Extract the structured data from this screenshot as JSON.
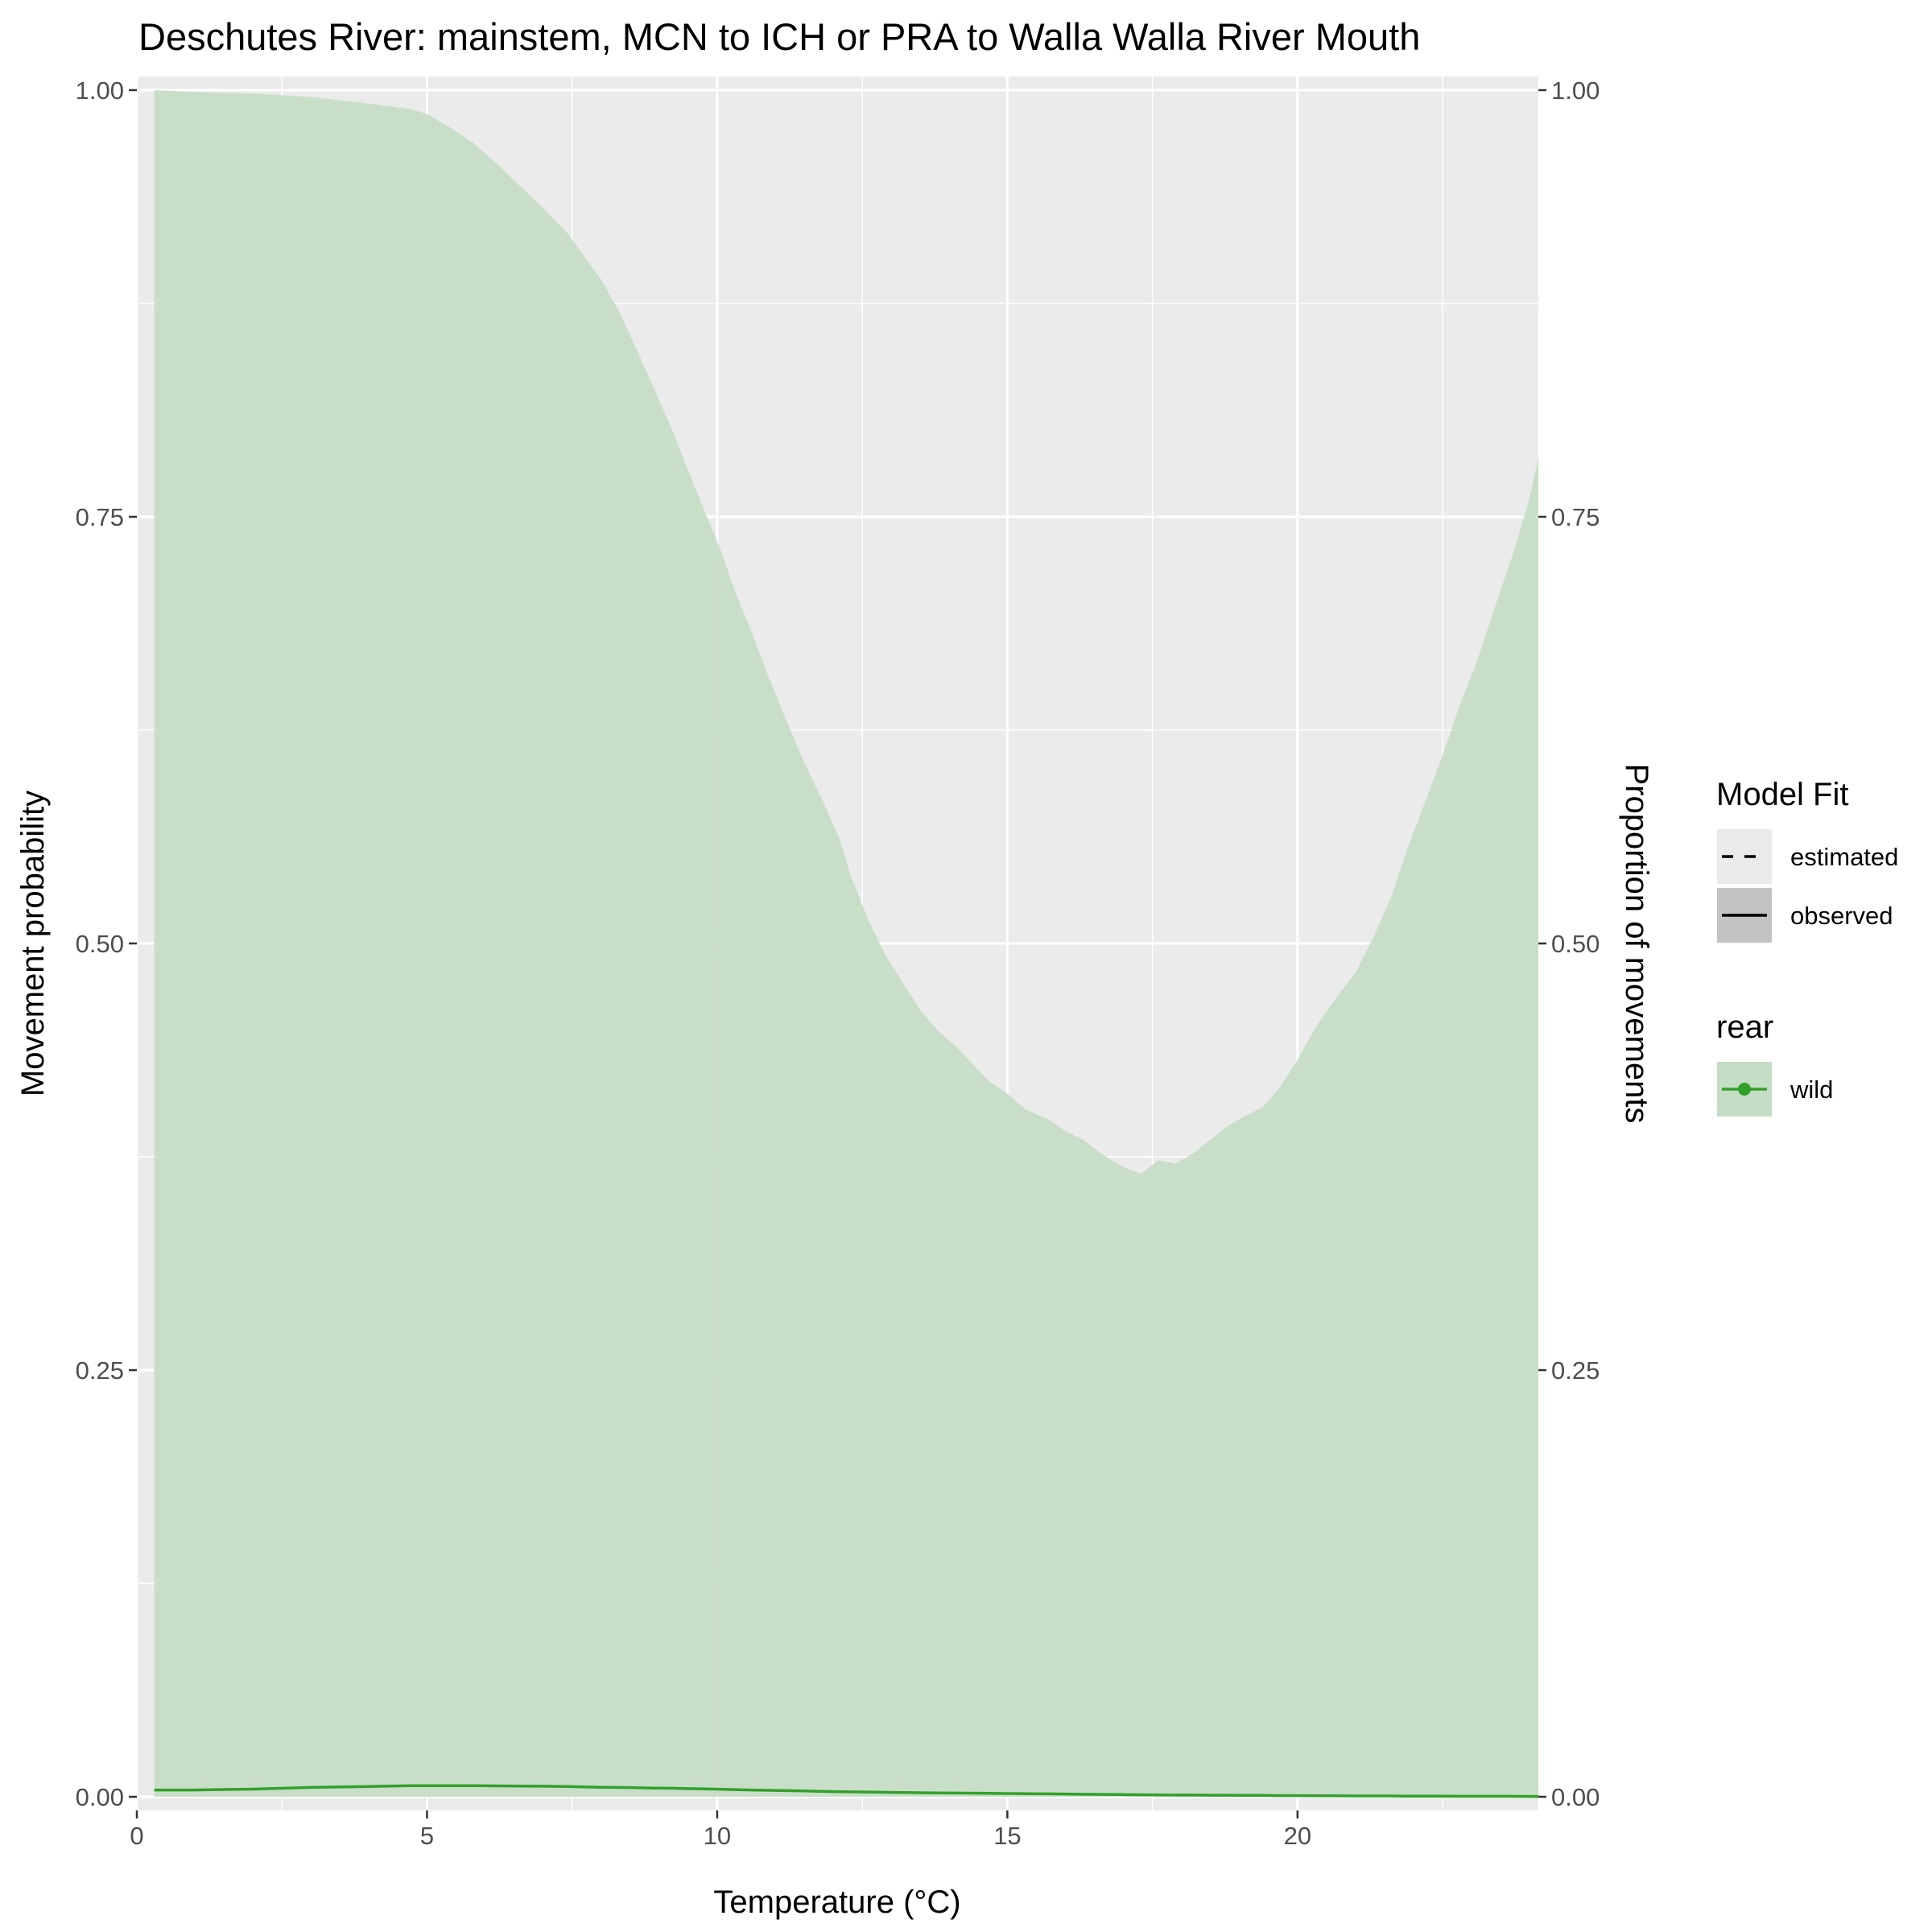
{
  "chart_data": {
    "type": "area",
    "title": "Deschutes River: mainstem, MCN to ICH or PRA to Walla Walla River Mouth",
    "xlabel": "Temperature (°C)",
    "ylabel": "Movement probability",
    "ylabel_right": "Proportion of movements",
    "xlim": [
      0,
      24.15
    ],
    "ylim": [
      -0.008,
      1.008
    ],
    "x_ticks": [
      0,
      5,
      10,
      15,
      20
    ],
    "x_tick_labels": [
      "0",
      "5",
      "10",
      "15",
      "20"
    ],
    "y_ticks": [
      0,
      0.25,
      0.5,
      0.75,
      1
    ],
    "y_tick_labels": [
      "0.00",
      "0.25",
      "0.50",
      "0.75",
      "1.00"
    ],
    "y_minor_ticks": [
      0.125,
      0.375,
      0.625,
      0.875
    ],
    "x_minor_ticks": [
      2.5,
      7.5,
      12.5,
      17.5,
      22.5
    ],
    "grid": true,
    "legend_position": "right",
    "colors": {
      "ribbon": "#c5dcc5",
      "line": "#33a02c",
      "panel": "#ebebeb",
      "grid": "#ffffff"
    },
    "legends": [
      {
        "title": "Model Fit",
        "entries": [
          {
            "label": "estimated",
            "style": "dashed",
            "key_fill": "#ebebeb"
          },
          {
            "label": "observed",
            "style": "solid",
            "key_fill": "#c3c3c3"
          }
        ]
      },
      {
        "title": "rear",
        "entries": [
          {
            "label": "wild",
            "style": "point-line",
            "key_fill": "#c5dcc5",
            "color": "#33a02c"
          }
        ]
      }
    ],
    "series": [
      {
        "name": "wild",
        "x": [
          0.3,
          1.0,
          2.0,
          3.0,
          4.0,
          4.7,
          5.0,
          5.4,
          5.8,
          6.2,
          6.6,
          7.0,
          7.4,
          7.7,
          8.0,
          8.3,
          8.6,
          8.9,
          9.2,
          9.5,
          9.8,
          10.1,
          10.3,
          10.6,
          10.9,
          11.2,
          11.5,
          11.8,
          12.1,
          12.3,
          12.6,
          12.9,
          13.2,
          13.5,
          13.8,
          14.1,
          14.5,
          14.7,
          15.0,
          15.3,
          15.7,
          16.0,
          16.3,
          16.7,
          17.0,
          17.3,
          17.6,
          17.9,
          18.2,
          18.5,
          18.8,
          19.1,
          19.4,
          19.7,
          20.0,
          20.3,
          20.6,
          21.0,
          21.3,
          21.6,
          21.9,
          22.2,
          22.5,
          22.8,
          23.1,
          23.4,
          23.7,
          24.0,
          24.15
        ],
        "upper": [
          1.0,
          0.999,
          0.998,
          0.996,
          0.992,
          0.989,
          0.986,
          0.978,
          0.969,
          0.957,
          0.944,
          0.931,
          0.917,
          0.903,
          0.889,
          0.871,
          0.849,
          0.826,
          0.803,
          0.777,
          0.752,
          0.727,
          0.707,
          0.682,
          0.655,
          0.63,
          0.606,
          0.585,
          0.562,
          0.54,
          0.514,
          0.493,
          0.477,
          0.461,
          0.449,
          0.44,
          0.426,
          0.419,
          0.412,
          0.403,
          0.397,
          0.39,
          0.385,
          0.375,
          0.369,
          0.365,
          0.373,
          0.371,
          0.377,
          0.385,
          0.393,
          0.399,
          0.404,
          0.416,
          0.432,
          0.45,
          0.465,
          0.483,
          0.503,
          0.526,
          0.556,
          0.583,
          0.61,
          0.64,
          0.666,
          0.697,
          0.727,
          0.761,
          0.785
        ],
        "lower": [
          0,
          0,
          0,
          0,
          0,
          0,
          0,
          0,
          0,
          0,
          0,
          0,
          0,
          0,
          0,
          0,
          0,
          0,
          0,
          0,
          0,
          0,
          0,
          0,
          0,
          0,
          0,
          0,
          0,
          0,
          0,
          0,
          0,
          0,
          0,
          0,
          0,
          0,
          0,
          0,
          0,
          0,
          0,
          0,
          0,
          0,
          0,
          0,
          0,
          0,
          0,
          0,
          0,
          0,
          0,
          0,
          0,
          0,
          0,
          0,
          0,
          0,
          0,
          0,
          0,
          0,
          0,
          0,
          0
        ],
        "estimate": [
          0.004,
          0.004,
          0.0045,
          0.0055,
          0.006,
          0.0065,
          0.0065,
          0.0065,
          0.0065,
          0.0064,
          0.0063,
          0.0062,
          0.006,
          0.0058,
          0.0056,
          0.0055,
          0.0053,
          0.0051,
          0.005,
          0.0048,
          0.0046,
          0.0044,
          0.0042,
          0.004,
          0.0038,
          0.0036,
          0.0034,
          0.0032,
          0.003,
          0.0029,
          0.0028,
          0.0026,
          0.0025,
          0.0024,
          0.0023,
          0.0022,
          0.0021,
          0.002,
          0.0019,
          0.0018,
          0.0017,
          0.0016,
          0.0015,
          0.0014,
          0.0013,
          0.0012,
          0.0011,
          0.001,
          0.001,
          0.0009,
          0.0009,
          0.0008,
          0.0008,
          0.0007,
          0.0007,
          0.0006,
          0.0006,
          0.0005,
          0.0005,
          0.0005,
          0.0004,
          0.0004,
          0.0004,
          0.0003,
          0.0003,
          0.0003,
          0.0003,
          0.0002,
          0.0002
        ]
      }
    ]
  }
}
